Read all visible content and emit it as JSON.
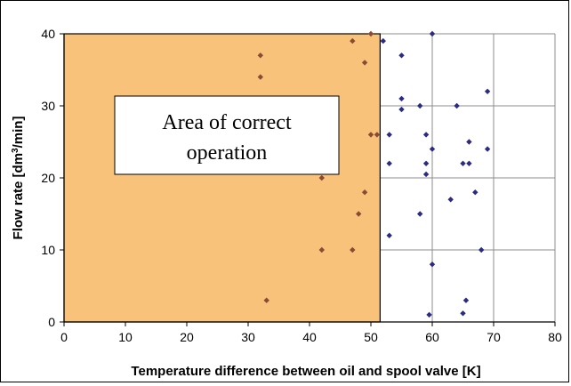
{
  "chart_data": {
    "type": "scatter",
    "title": "",
    "xlabel": "Temperature difference between oil and spool valve [K]",
    "ylabel_parts": {
      "pre": "Flow rate [dm",
      "sup": "3",
      "post": "/min]"
    },
    "xlim": [
      0,
      80
    ],
    "ylim": [
      0,
      40
    ],
    "x_ticks": [
      "0",
      "10",
      "20",
      "30",
      "40",
      "50",
      "60",
      "70",
      "80"
    ],
    "y_ticks": [
      "0",
      "10",
      "20",
      "30",
      "40"
    ],
    "grid": true,
    "region": {
      "x": [
        0,
        51.5
      ],
      "y": [
        0,
        40
      ],
      "color": "#f9c27a"
    },
    "annotation_lines": [
      "Area of correct operation"
    ],
    "annotation_display": [
      "Area of correct",
      "operation"
    ],
    "point_color": "#2b2b83",
    "points": [
      [
        32,
        37
      ],
      [
        32,
        34
      ],
      [
        33,
        3
      ],
      [
        42,
        20
      ],
      [
        42,
        10
      ],
      [
        47,
        39
      ],
      [
        47,
        10
      ],
      [
        48,
        15
      ],
      [
        49,
        36
      ],
      [
        49,
        18
      ],
      [
        50,
        40
      ],
      [
        50,
        26
      ],
      [
        51,
        26
      ],
      [
        52,
        39
      ],
      [
        53,
        26
      ],
      [
        53,
        22
      ],
      [
        53,
        12
      ],
      [
        55,
        37
      ],
      [
        55,
        31
      ],
      [
        55,
        29.5
      ],
      [
        58,
        30
      ],
      [
        58,
        15
      ],
      [
        59,
        26
      ],
      [
        59,
        22
      ],
      [
        59,
        20.5
      ],
      [
        60,
        40
      ],
      [
        60,
        24
      ],
      [
        60,
        8
      ],
      [
        59.5,
        1
      ],
      [
        63,
        17
      ],
      [
        64,
        30
      ],
      [
        65,
        22
      ],
      [
        66,
        25
      ],
      [
        66,
        22
      ],
      [
        65.5,
        3
      ],
      [
        65,
        1.2
      ],
      [
        67,
        18
      ],
      [
        68,
        10
      ],
      [
        69,
        32
      ],
      [
        69,
        24
      ]
    ]
  }
}
